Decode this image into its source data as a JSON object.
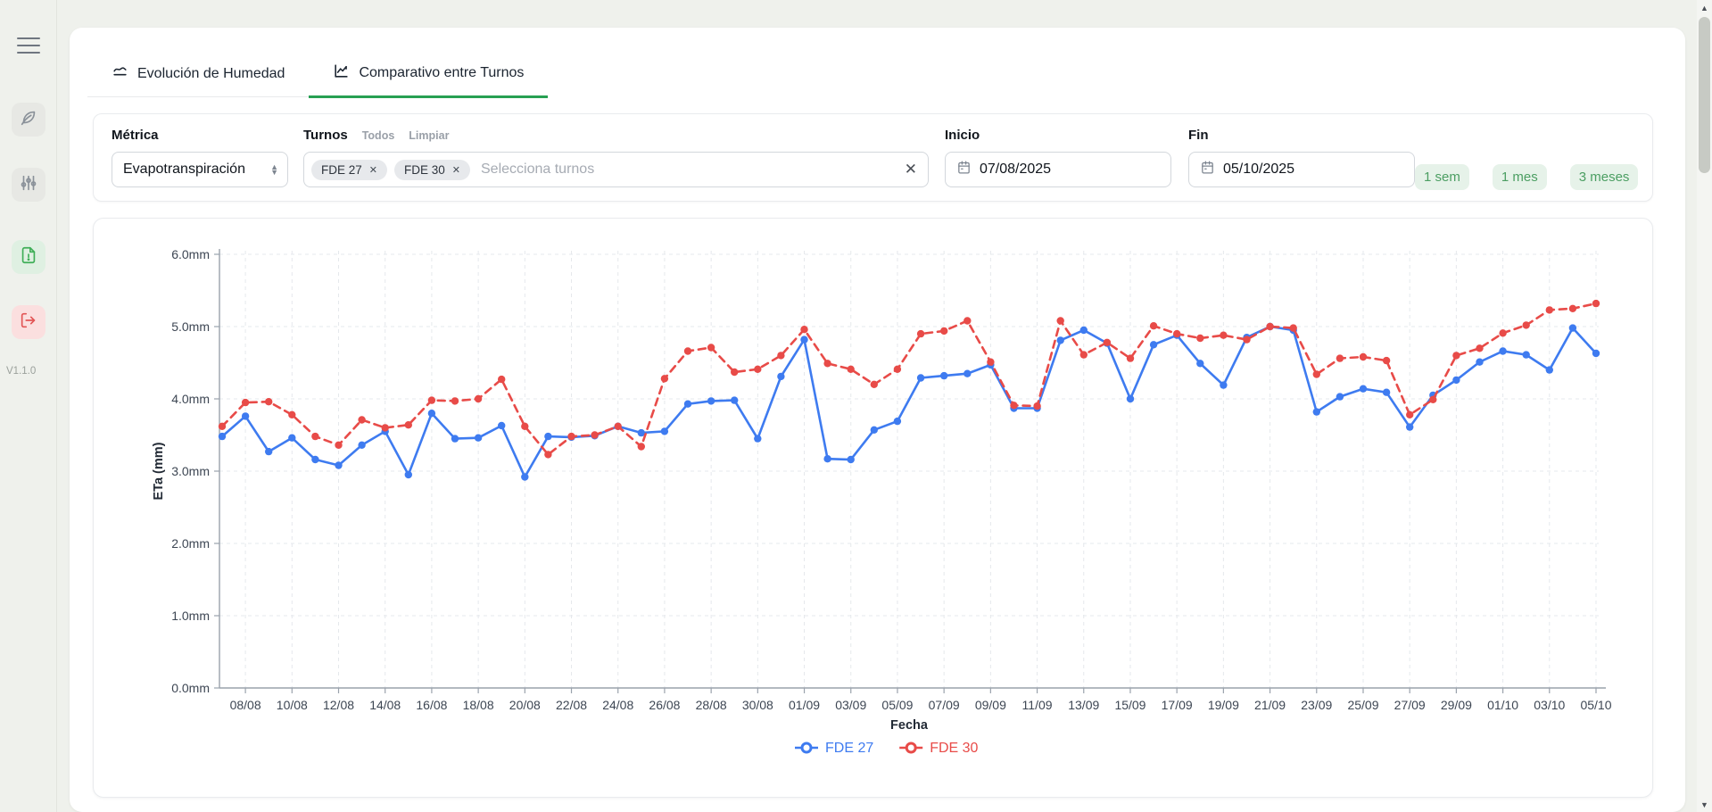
{
  "sidebar": {
    "icons": [
      "menu",
      "leaf",
      "sliders",
      "report-alert",
      "logout"
    ],
    "version": "V1.1.0"
  },
  "tabs": [
    {
      "label": "Evolución de Humedad",
      "active": false
    },
    {
      "label": "Comparativo entre Turnos",
      "active": true
    }
  ],
  "accent_color": "#27a052",
  "filters": {
    "metric": {
      "label": "Métrica",
      "value": "Evapotranspiración"
    },
    "turnos": {
      "label": "Turnos",
      "action_all": "Todos",
      "action_clear": "Limpiar",
      "chips": [
        "FDE 27",
        "FDE 30"
      ],
      "placeholder": "Selecciona turnos"
    },
    "inicio": {
      "label": "Inicio",
      "value": "07/08/2025"
    },
    "fin": {
      "label": "Fin",
      "value": "05/10/2025"
    },
    "quick_ranges": [
      "1 sem",
      "1 mes",
      "3 meses"
    ]
  },
  "chart_data": {
    "type": "line",
    "xlabel": "Fecha",
    "ylabel": "ETa (mm)",
    "ylim": [
      0,
      6
    ],
    "y_ticks": [
      "0.0mm",
      "1.0mm",
      "2.0mm",
      "3.0mm",
      "4.0mm",
      "5.0mm",
      "6.0mm"
    ],
    "grid": true,
    "legend_position": "bottom",
    "x": [
      "07/08",
      "08/08",
      "09/08",
      "10/08",
      "11/08",
      "12/08",
      "13/08",
      "14/08",
      "15/08",
      "16/08",
      "17/08",
      "18/08",
      "19/08",
      "20/08",
      "21/08",
      "22/08",
      "23/08",
      "24/08",
      "25/08",
      "26/08",
      "27/08",
      "28/08",
      "29/08",
      "30/08",
      "31/08",
      "01/09",
      "02/09",
      "03/09",
      "04/09",
      "05/09",
      "06/09",
      "07/09",
      "08/09",
      "09/09",
      "10/09",
      "11/09",
      "12/09",
      "13/09",
      "14/09",
      "15/09",
      "16/09",
      "17/09",
      "18/09",
      "19/09",
      "20/09",
      "21/09",
      "22/09",
      "23/09",
      "24/09",
      "25/09",
      "26/09",
      "27/09",
      "28/09",
      "29/09",
      "30/09",
      "01/10",
      "02/10",
      "03/10",
      "04/10",
      "05/10"
    ],
    "x_tick_labels": [
      "08/08",
      "10/08",
      "12/08",
      "14/08",
      "16/08",
      "18/08",
      "20/08",
      "22/08",
      "24/08",
      "26/08",
      "28/08",
      "30/08",
      "01/09",
      "03/09",
      "05/09",
      "07/09",
      "09/09",
      "11/09",
      "13/09",
      "15/09",
      "17/09",
      "19/09",
      "21/09",
      "23/09",
      "25/09",
      "27/09",
      "29/09",
      "01/10",
      "03/10",
      "05/10"
    ],
    "series": [
      {
        "name": "FDE 27",
        "color": "#3e7bf0",
        "style": "solid",
        "values": [
          3.48,
          3.76,
          3.27,
          3.46,
          3.16,
          3.08,
          3.36,
          3.55,
          2.95,
          3.8,
          3.45,
          3.46,
          3.63,
          2.92,
          3.48,
          3.47,
          3.49,
          3.62,
          3.53,
          3.55,
          3.93,
          3.97,
          3.98,
          3.45,
          4.31,
          4.82,
          3.17,
          3.16,
          3.57,
          3.69,
          4.29,
          4.32,
          4.35,
          4.47,
          3.87,
          3.87,
          4.81,
          4.95,
          4.77,
          4.0,
          4.75,
          4.88,
          4.49,
          4.19,
          4.85,
          5.0,
          4.95,
          3.82,
          4.03,
          4.14,
          4.09,
          3.61,
          4.05,
          4.26,
          4.51,
          4.66,
          4.61,
          4.4,
          4.98,
          4.63
        ]
      },
      {
        "name": "FDE 30",
        "color": "#e84b48",
        "style": "dashed",
        "values": [
          3.62,
          3.95,
          3.96,
          3.78,
          3.48,
          3.36,
          3.71,
          3.6,
          3.64,
          3.98,
          3.97,
          4.0,
          4.27,
          3.62,
          3.23,
          3.48,
          3.5,
          3.62,
          3.34,
          4.28,
          4.66,
          4.71,
          4.37,
          4.41,
          4.6,
          4.96,
          4.49,
          4.41,
          4.2,
          4.41,
          4.9,
          4.94,
          5.08,
          4.51,
          3.91,
          3.9,
          5.08,
          4.61,
          4.78,
          4.56,
          5.01,
          4.9,
          4.84,
          4.88,
          4.82,
          5.0,
          4.98,
          4.34,
          4.56,
          4.58,
          4.53,
          3.78,
          3.99,
          4.6,
          4.7,
          4.91,
          5.02,
          5.23,
          5.25,
          5.32
        ]
      }
    ]
  }
}
